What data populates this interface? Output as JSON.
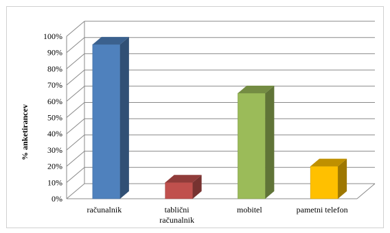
{
  "chart_data": {
    "type": "bar",
    "style": "3d-column",
    "categories": [
      [
        "računalnik"
      ],
      [
        "tablični",
        "računalnik"
      ],
      [
        "mobitel"
      ],
      [
        "pametni telefon"
      ]
    ],
    "values": [
      95,
      10,
      65,
      20
    ],
    "colors": [
      "#4F81BD",
      "#C0504D",
      "#9BBB59",
      "#FFC000"
    ],
    "ylabel": "% anketirancev",
    "ylim": [
      0,
      100
    ],
    "yticks": [
      0,
      10,
      20,
      30,
      40,
      50,
      60,
      70,
      80,
      90,
      100
    ],
    "tick_suffix": "%",
    "grid": true,
    "legend": "none"
  }
}
